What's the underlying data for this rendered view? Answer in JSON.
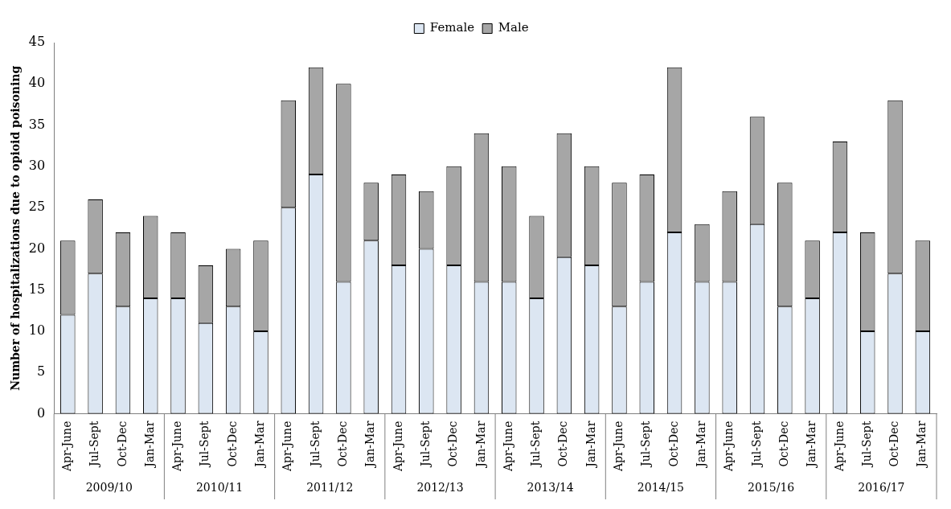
{
  "chart_data": {
    "type": "bar",
    "stacked": true,
    "ylabel": "Number of hospitalizations due to opioid poisoning",
    "categories": [
      "Apr-June",
      "Jul-Sept",
      "Oct-Dec",
      "Jan-Mar",
      "Apr-June",
      "Jul-Sept",
      "Oct-Dec",
      "Jan-Mar",
      "Apr-June",
      "Jul-Sept",
      "Oct-Dec",
      "Jan-Mar",
      "Apr-June",
      "Jul-Sept",
      "Oct-Dec",
      "Jan-Mar",
      "Apr-June",
      "Jul-Sept",
      "Oct-Dec",
      "Jan-Mar",
      "Apr-June",
      "Jul-Sept",
      "Oct-Dec",
      "Jan-Mar",
      "Apr-June",
      "Jul-Sept",
      "Oct-Dec",
      "Jan-Mar",
      "Apr-June",
      "Jul-Sept",
      "Oct-Dec",
      "Jan-Mar"
    ],
    "series": [
      {
        "name": "Female",
        "color": "#dce6f2",
        "values": [
          12,
          17,
          13,
          14,
          14,
          11,
          13,
          10,
          25,
          29,
          16,
          21,
          18,
          20,
          18,
          16,
          16,
          14,
          19,
          18,
          13,
          16,
          22,
          16,
          16,
          23,
          13,
          14,
          22,
          10,
          17,
          10
        ]
      },
      {
        "name": "Male",
        "color": "#a6a6a6",
        "values": [
          9,
          9,
          9,
          10,
          8,
          7,
          7,
          11,
          13,
          13,
          24,
          7,
          11,
          7,
          12,
          18,
          14,
          10,
          15,
          12,
          15,
          13,
          20,
          7,
          11,
          13,
          15,
          7,
          11,
          12,
          21,
          11
        ]
      }
    ],
    "annotations": [
      "2009/10",
      "2010/11",
      "2011/12",
      "2012/13",
      "2013/14",
      "2014/15",
      "2015/16",
      "2016/17"
    ],
    "ylim": [
      0,
      45
    ],
    "yticks": [
      0,
      5,
      10,
      15,
      20,
      25,
      30,
      35,
      40,
      45
    ],
    "grid": false,
    "legend": "top"
  }
}
